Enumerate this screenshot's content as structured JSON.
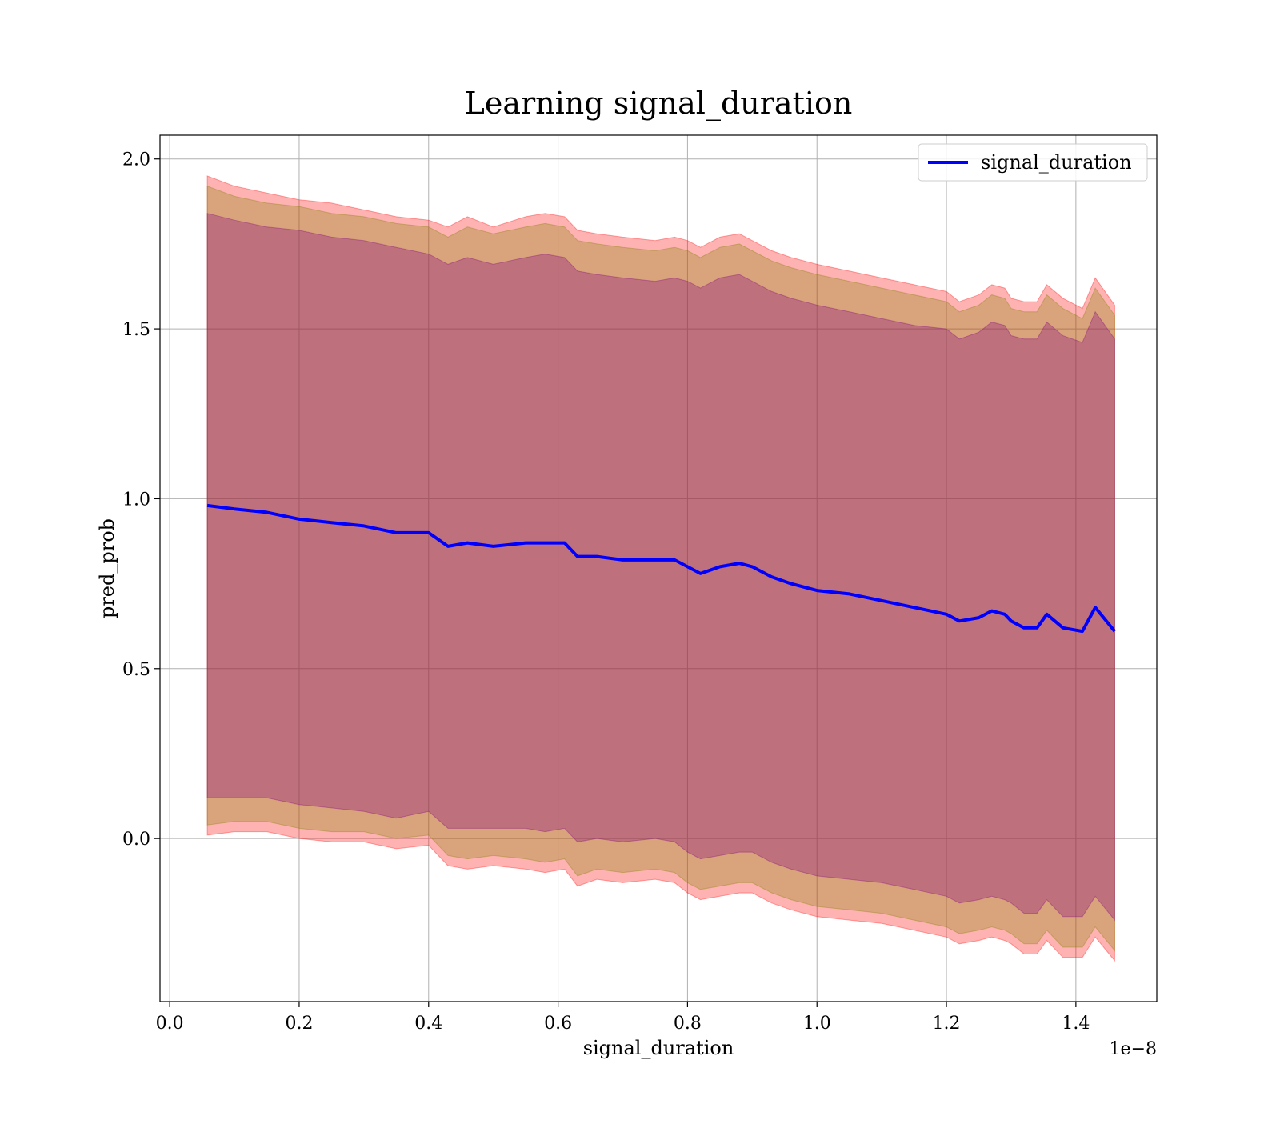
{
  "chart_data": {
    "type": "line",
    "title": "Learning signal_duration",
    "xlabel": "signal_duration",
    "ylabel": "pred_prob",
    "x_offset_text": "1e−8",
    "xlim": [
      -1.5e-10,
      1.525e-08
    ],
    "ylim": [
      -0.48,
      2.07
    ],
    "x_ticks": [
      0,
      2e-09,
      4e-09,
      6e-09,
      8e-09,
      1e-08,
      1.2e-08,
      1.4e-08
    ],
    "x_tick_labels": [
      "0.0",
      "0.2",
      "0.4",
      "0.6",
      "0.8",
      "1.0",
      "1.2",
      "1.4"
    ],
    "y_ticks": [
      0,
      0.5,
      1.0,
      1.5,
      2.0
    ],
    "y_tick_labels": [
      "0.0",
      "0.5",
      "1.0",
      "1.5",
      "2.0"
    ],
    "grid": true,
    "legend_position": "top-right",
    "series": [
      {
        "name": "signal_duration",
        "color": "#0000ff",
        "x": [
          5.8e-10,
          1e-09,
          1.5e-09,
          2e-09,
          2.5e-09,
          3e-09,
          3.5e-09,
          4e-09,
          4.3e-09,
          4.6e-09,
          5e-09,
          5.5e-09,
          5.8e-09,
          6.1e-09,
          6.3e-09,
          6.6e-09,
          7e-09,
          7.5e-09,
          7.8e-09,
          8e-09,
          8.2e-09,
          8.5e-09,
          8.8e-09,
          9e-09,
          9.3e-09,
          9.6e-09,
          1e-08,
          1.05e-08,
          1.1e-08,
          1.15e-08,
          1.2e-08,
          1.22e-08,
          1.25e-08,
          1.27e-08,
          1.29e-08,
          1.3e-08,
          1.32e-08,
          1.34e-08,
          1.355e-08,
          1.38e-08,
          1.41e-08,
          1.43e-08,
          1.46e-08
        ],
        "values": [
          0.98,
          0.97,
          0.96,
          0.94,
          0.93,
          0.92,
          0.9,
          0.9,
          0.86,
          0.87,
          0.86,
          0.87,
          0.87,
          0.87,
          0.83,
          0.83,
          0.82,
          0.82,
          0.82,
          0.8,
          0.78,
          0.8,
          0.81,
          0.8,
          0.77,
          0.75,
          0.73,
          0.72,
          0.7,
          0.68,
          0.66,
          0.64,
          0.65,
          0.67,
          0.66,
          0.64,
          0.62,
          0.62,
          0.66,
          0.62,
          0.61,
          0.68,
          0.61
        ],
        "bands": [
          {
            "color": "#ff0000",
            "opacity": 0.3,
            "upper": [
              1.95,
              1.92,
              1.9,
              1.88,
              1.87,
              1.85,
              1.83,
              1.82,
              1.8,
              1.83,
              1.8,
              1.83,
              1.84,
              1.83,
              1.79,
              1.78,
              1.77,
              1.76,
              1.77,
              1.76,
              1.74,
              1.77,
              1.78,
              1.76,
              1.73,
              1.71,
              1.69,
              1.67,
              1.65,
              1.63,
              1.61,
              1.58,
              1.6,
              1.63,
              1.62,
              1.59,
              1.58,
              1.58,
              1.63,
              1.59,
              1.56,
              1.65,
              1.57
            ],
            "lower": [
              0.01,
              0.02,
              0.02,
              0.0,
              -0.01,
              -0.01,
              -0.03,
              -0.02,
              -0.08,
              -0.09,
              -0.08,
              -0.09,
              -0.1,
              -0.09,
              -0.14,
              -0.12,
              -0.13,
              -0.12,
              -0.13,
              -0.16,
              -0.18,
              -0.17,
              -0.16,
              -0.16,
              -0.19,
              -0.21,
              -0.23,
              -0.24,
              -0.25,
              -0.27,
              -0.29,
              -0.31,
              -0.3,
              -0.29,
              -0.3,
              -0.31,
              -0.34,
              -0.34,
              -0.3,
              -0.35,
              -0.35,
              -0.29,
              -0.36
            ]
          },
          {
            "color": "#808000",
            "opacity": 0.3,
            "upper": [
              1.92,
              1.89,
              1.87,
              1.86,
              1.84,
              1.83,
              1.81,
              1.8,
              1.77,
              1.8,
              1.78,
              1.8,
              1.81,
              1.8,
              1.76,
              1.75,
              1.74,
              1.73,
              1.74,
              1.73,
              1.71,
              1.74,
              1.75,
              1.73,
              1.7,
              1.68,
              1.66,
              1.64,
              1.62,
              1.6,
              1.58,
              1.55,
              1.57,
              1.6,
              1.59,
              1.56,
              1.55,
              1.55,
              1.6,
              1.56,
              1.53,
              1.62,
              1.54
            ],
            "lower": [
              0.04,
              0.05,
              0.05,
              0.03,
              0.02,
              0.02,
              0.0,
              0.01,
              -0.05,
              -0.06,
              -0.05,
              -0.06,
              -0.07,
              -0.06,
              -0.11,
              -0.09,
              -0.1,
              -0.09,
              -0.1,
              -0.13,
              -0.15,
              -0.14,
              -0.13,
              -0.13,
              -0.16,
              -0.18,
              -0.2,
              -0.21,
              -0.22,
              -0.24,
              -0.26,
              -0.28,
              -0.27,
              -0.26,
              -0.27,
              -0.28,
              -0.31,
              -0.31,
              -0.27,
              -0.32,
              -0.32,
              -0.26,
              -0.33
            ]
          },
          {
            "color": "#800080",
            "opacity": 0.3,
            "upper": [
              1.84,
              1.82,
              1.8,
              1.79,
              1.77,
              1.76,
              1.74,
              1.72,
              1.69,
              1.71,
              1.69,
              1.71,
              1.72,
              1.71,
              1.67,
              1.66,
              1.65,
              1.64,
              1.65,
              1.64,
              1.62,
              1.65,
              1.66,
              1.64,
              1.61,
              1.59,
              1.57,
              1.55,
              1.53,
              1.51,
              1.5,
              1.47,
              1.49,
              1.52,
              1.51,
              1.48,
              1.47,
              1.47,
              1.52,
              1.48,
              1.46,
              1.55,
              1.47
            ],
            "lower": [
              0.12,
              0.12,
              0.12,
              0.1,
              0.09,
              0.08,
              0.06,
              0.08,
              0.03,
              0.03,
              0.03,
              0.03,
              0.02,
              0.03,
              -0.01,
              0.0,
              -0.01,
              0.0,
              -0.01,
              -0.04,
              -0.06,
              -0.05,
              -0.04,
              -0.04,
              -0.07,
              -0.09,
              -0.11,
              -0.12,
              -0.13,
              -0.15,
              -0.17,
              -0.19,
              -0.18,
              -0.17,
              -0.18,
              -0.19,
              -0.22,
              -0.22,
              -0.18,
              -0.23,
              -0.23,
              -0.17,
              -0.24
            ]
          }
        ]
      }
    ]
  }
}
